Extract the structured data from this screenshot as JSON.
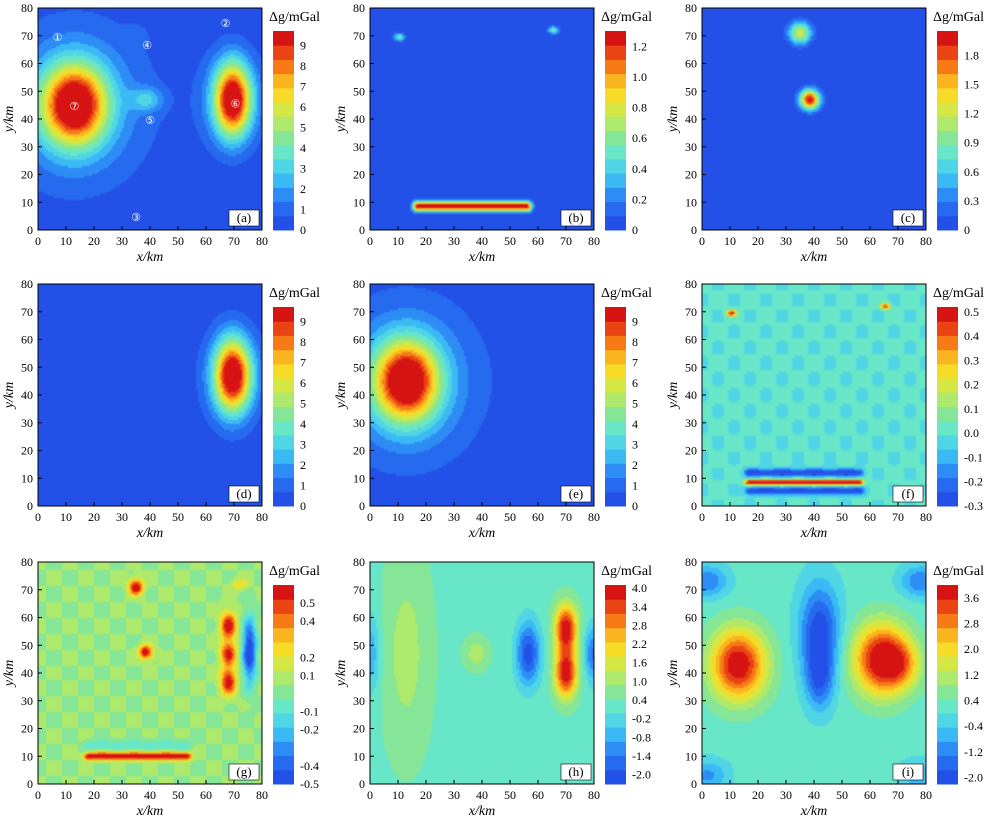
{
  "chart_data": [
    {
      "type": "heatmap",
      "panel_label": "(a)",
      "xlabel": "x/km",
      "ylabel": "y/km",
      "xlim": [
        0,
        80
      ],
      "ylim": [
        0,
        80
      ],
      "x_ticks": [
        "0",
        "10",
        "20",
        "30",
        "40",
        "50",
        "60",
        "70",
        "80"
      ],
      "y_ticks": [
        "0",
        "10",
        "20",
        "30",
        "40",
        "50",
        "60",
        "70",
        "80"
      ],
      "colorbar_title": "Δg/mGal",
      "vmin": 0,
      "vmax": 9.7,
      "colorbar_ticks": [
        "0",
        "1",
        "2",
        "3",
        "4",
        "5",
        "6",
        "7",
        "8",
        "9"
      ],
      "background": 0,
      "sources": [
        {
          "x": 13,
          "y": 45,
          "amp": 9.7,
          "sx": 8,
          "sy": 10
        },
        {
          "x": 13,
          "y": 45,
          "amp": 2.2,
          "sx": 20,
          "sy": 22
        },
        {
          "x": 69.5,
          "y": 47,
          "amp": 9.6,
          "sx": 4.5,
          "sy": 9
        },
        {
          "x": 69.5,
          "y": 47,
          "amp": 1.6,
          "sx": 9,
          "sy": 14
        },
        {
          "x": 39,
          "y": 47,
          "amp": 2.2,
          "sx": 4,
          "sy": 3
        },
        {
          "x": 35,
          "y": 70,
          "amp": 0.7,
          "sx": 3,
          "sy": 2.5
        }
      ],
      "markers": [
        {
          "text": "①",
          "x": 7,
          "y": 70
        },
        {
          "text": "②",
          "x": 67,
          "y": 75
        },
        {
          "text": "③",
          "x": 35,
          "y": 5
        },
        {
          "text": "④",
          "x": 39,
          "y": 67
        },
        {
          "text": "⑤",
          "x": 40,
          "y": 40
        },
        {
          "text": "⑥",
          "x": 70.5,
          "y": 46
        },
        {
          "text": "⑦",
          "x": 13,
          "y": 45
        }
      ]
    },
    {
      "type": "heatmap",
      "panel_label": "(b)",
      "xlabel": "x/km",
      "ylabel": "y/km",
      "xlim": [
        0,
        80
      ],
      "ylim": [
        0,
        80
      ],
      "x_ticks": [
        "0",
        "10",
        "20",
        "30",
        "40",
        "50",
        "60",
        "70",
        "80"
      ],
      "y_ticks": [
        "0",
        "10",
        "20",
        "30",
        "40",
        "50",
        "60",
        "70",
        "80"
      ],
      "colorbar_title": "Δg/mGal",
      "vmin": 0,
      "vmax": 1.3,
      "colorbar_ticks": [
        "0",
        "0.2",
        "0.4",
        "0.6",
        "0.8",
        "1.0",
        "1.2"
      ],
      "background": 0,
      "sources": [
        {
          "x": 10.5,
          "y": 69.5,
          "amp": 0.55,
          "sx": 1.4,
          "sy": 1.0
        },
        {
          "x": 65.5,
          "y": 72,
          "amp": 0.55,
          "sx": 1.4,
          "sy": 1.0
        }
      ],
      "bars": [
        {
          "x0": 17,
          "x1": 56,
          "y": 8.5,
          "amp": 1.32,
          "sy": 1.3
        }
      ]
    },
    {
      "type": "heatmap",
      "panel_label": "(c)",
      "xlabel": "x/km",
      "ylabel": "y/km",
      "xlim": [
        0,
        80
      ],
      "ylim": [
        0,
        80
      ],
      "x_ticks": [
        "0",
        "10",
        "20",
        "30",
        "40",
        "50",
        "60",
        "70",
        "80"
      ],
      "y_ticks": [
        "0",
        "10",
        "20",
        "30",
        "40",
        "50",
        "60",
        "70",
        "80"
      ],
      "colorbar_title": "Δg/mGal",
      "vmin": 0,
      "vmax": 2.05,
      "colorbar_ticks": [
        "0",
        "0.3",
        "0.6",
        "0.9",
        "1.2",
        "1.5",
        "1.8"
      ],
      "background": 0,
      "sources": [
        {
          "x": 35,
          "y": 71,
          "amp": 1.25,
          "sx": 2.8,
          "sy": 2.8
        },
        {
          "x": 38.5,
          "y": 47,
          "amp": 2.05,
          "sx": 2.5,
          "sy": 2.5
        }
      ]
    },
    {
      "type": "heatmap",
      "panel_label": "(d)",
      "xlabel": "x/km",
      "ylabel": "y/km",
      "xlim": [
        0,
        80
      ],
      "ylim": [
        0,
        80
      ],
      "x_ticks": [
        "0",
        "10",
        "20",
        "30",
        "40",
        "50",
        "60",
        "70",
        "80"
      ],
      "y_ticks": [
        "0",
        "10",
        "20",
        "30",
        "40",
        "50",
        "60",
        "70",
        "80"
      ],
      "colorbar_title": "Δg/mGal",
      "vmin": 0,
      "vmax": 9.7,
      "colorbar_ticks": [
        "0",
        "1",
        "2",
        "3",
        "4",
        "5",
        "6",
        "7",
        "8",
        "9"
      ],
      "background": 0,
      "sources": [
        {
          "x": 69.5,
          "y": 47,
          "amp": 9.6,
          "sx": 4.5,
          "sy": 9
        },
        {
          "x": 69.5,
          "y": 47,
          "amp": 1.6,
          "sx": 9,
          "sy": 14
        }
      ]
    },
    {
      "type": "heatmap",
      "panel_label": "(e)",
      "xlabel": "x/km",
      "ylabel": "y/km",
      "xlim": [
        0,
        80
      ],
      "ylim": [
        0,
        80
      ],
      "x_ticks": [
        "0",
        "10",
        "20",
        "30",
        "40",
        "50",
        "60",
        "70",
        "80"
      ],
      "y_ticks": [
        "0",
        "10",
        "20",
        "30",
        "40",
        "50",
        "60",
        "70",
        "80"
      ],
      "colorbar_title": "Δg/mGal",
      "vmin": 0,
      "vmax": 9.7,
      "colorbar_ticks": [
        "0",
        "1",
        "2",
        "3",
        "4",
        "5",
        "6",
        "7",
        "8",
        "9"
      ],
      "background": 0,
      "sources": [
        {
          "x": 13,
          "y": 45,
          "amp": 9.7,
          "sx": 8,
          "sy": 10
        },
        {
          "x": 13,
          "y": 45,
          "amp": 2.2,
          "sx": 20,
          "sy": 22
        }
      ]
    },
    {
      "type": "heatmap",
      "panel_label": "(f)",
      "xlabel": "x/km",
      "ylabel": "y/km",
      "xlim": [
        0,
        80
      ],
      "ylim": [
        0,
        80
      ],
      "x_ticks": [
        "0",
        "10",
        "20",
        "30",
        "40",
        "50",
        "60",
        "70",
        "80"
      ],
      "y_ticks": [
        "0",
        "10",
        "20",
        "30",
        "40",
        "50",
        "60",
        "70",
        "80"
      ],
      "colorbar_title": "Δg/mGal",
      "vmin": -0.3,
      "vmax": 0.52,
      "colorbar_ticks": [
        "-0.3",
        "-0.2",
        "-0.1",
        "0.0",
        "0.1",
        "0.2",
        "0.3",
        "0.4",
        "0.5"
      ],
      "background": 0,
      "ripple": 0.03,
      "sources": [
        {
          "x": 10.5,
          "y": 69.5,
          "amp": 0.5,
          "sx": 1.2,
          "sy": 0.8
        },
        {
          "x": 65.5,
          "y": 72,
          "amp": 0.45,
          "sx": 1.2,
          "sy": 0.8
        }
      ],
      "bars": [
        {
          "x0": 17,
          "x1": 56,
          "y": 8.5,
          "amp": 0.55,
          "sy": 0.7
        },
        {
          "x0": 17,
          "x1": 56,
          "y": 12,
          "amp": -0.3,
          "sy": 1.0
        },
        {
          "x0": 17,
          "x1": 56,
          "y": 5.5,
          "amp": -0.3,
          "sy": 1.0
        }
      ]
    },
    {
      "type": "heatmap",
      "panel_label": "(g)",
      "xlabel": "x/km",
      "ylabel": "y/km",
      "xlim": [
        0,
        80
      ],
      "ylim": [
        0,
        80
      ],
      "x_ticks": [
        "0",
        "10",
        "20",
        "30",
        "40",
        "50",
        "60",
        "70",
        "80"
      ],
      "y_ticks": [
        "0",
        "10",
        "20",
        "30",
        "40",
        "50",
        "60",
        "70",
        "80"
      ],
      "colorbar_title": "Δg/mGal",
      "vmin": -0.5,
      "vmax": 0.6,
      "colorbar_ticks": [
        "-0.5",
        "-0.4",
        "-0.2",
        "-0.1",
        "0.1",
        "0.2",
        "0.4",
        "0.5"
      ],
      "background": 0.05,
      "ripple": 0.04,
      "sources": [
        {
          "x": 35,
          "y": 71,
          "amp": 0.6,
          "sx": 1.8,
          "sy": 2.0
        },
        {
          "x": 38.5,
          "y": 47.5,
          "amp": 0.6,
          "sx": 1.7,
          "sy": 1.7
        },
        {
          "x": 68,
          "y": 57,
          "amp": 0.55,
          "sx": 2.0,
          "sy": 3.5
        },
        {
          "x": 68,
          "y": 47,
          "amp": 0.5,
          "sx": 2.0,
          "sy": 3.0
        },
        {
          "x": 68,
          "y": 37,
          "amp": 0.55,
          "sx": 2.0,
          "sy": 3.5
        },
        {
          "x": 75.5,
          "y": 48,
          "amp": -0.58,
          "sx": 1.7,
          "sy": 8.0
        },
        {
          "x": 72,
          "y": 72,
          "amp": 0.2,
          "sx": 2.0,
          "sy": 1.5
        }
      ],
      "bars": [
        {
          "x0": 18,
          "x1": 53,
          "y": 10,
          "amp": 0.6,
          "sy": 1.0
        },
        {
          "x0": 18,
          "x1": 53,
          "y": 14,
          "amp": -0.12,
          "sy": 1.5
        }
      ]
    },
    {
      "type": "heatmap",
      "panel_label": "(h)",
      "xlabel": "x/km",
      "ylabel": "y/km",
      "xlim": [
        0,
        80
      ],
      "ylim": [
        0,
        80
      ],
      "x_ticks": [
        "0",
        "10",
        "20",
        "30",
        "40",
        "50",
        "60",
        "70",
        "80"
      ],
      "y_ticks": [
        "0",
        "10",
        "20",
        "30",
        "40",
        "50",
        "60",
        "70",
        "80"
      ],
      "colorbar_title": "Δg/mGal",
      "vmin": -2.3,
      "vmax": 4.1,
      "colorbar_ticks": [
        "-2.0",
        "-1.4",
        "-0.8",
        "-0.2",
        "0.4",
        "1.0",
        "1.6",
        "2.2",
        "2.8",
        "3.4",
        "4.0"
      ],
      "background": 0.3,
      "sources": [
        {
          "x": 70,
          "y": 56,
          "amp": 3.9,
          "sx": 2.8,
          "sy": 6
        },
        {
          "x": 70,
          "y": 40,
          "amp": 3.9,
          "sx": 2.8,
          "sy": 6
        },
        {
          "x": 56.5,
          "y": 47,
          "amp": -2.4,
          "sx": 3.0,
          "sy": 8
        },
        {
          "x": 80,
          "y": 47,
          "amp": -1.8,
          "sx": 2.5,
          "sy": 7
        },
        {
          "x": 0,
          "y": 47,
          "amp": -1.2,
          "sx": 2.5,
          "sy": 10
        },
        {
          "x": 13,
          "y": 47,
          "amp": 0.8,
          "sx": 6,
          "sy": 25
        },
        {
          "x": 38,
          "y": 47,
          "amp": 0.9,
          "sx": 3,
          "sy": 4
        }
      ]
    },
    {
      "type": "heatmap",
      "panel_label": "(i)",
      "xlabel": "x/km",
      "ylabel": "y/km",
      "xlim": [
        0,
        80
      ],
      "ylim": [
        0,
        80
      ],
      "x_ticks": [
        "0",
        "10",
        "20",
        "30",
        "40",
        "50",
        "60",
        "70",
        "80"
      ],
      "y_ticks": [
        "0",
        "10",
        "20",
        "30",
        "40",
        "50",
        "60",
        "70",
        "80"
      ],
      "colorbar_title": "Δg/mGal",
      "vmin": -2.2,
      "vmax": 4.0,
      "colorbar_ticks": [
        "-2.0",
        "-1.2",
        "-0.4",
        "0.4",
        "1.2",
        "2.0",
        "2.8",
        "3.6"
      ],
      "background": 0.2,
      "sources": [
        {
          "x": 13,
          "y": 43,
          "amp": 3.9,
          "sx": 7,
          "sy": 9
        },
        {
          "x": 64,
          "y": 45,
          "amp": 3.9,
          "sx": 7,
          "sy": 9
        },
        {
          "x": 71,
          "y": 43,
          "amp": 1.5,
          "sx": 5,
          "sy": 6
        },
        {
          "x": 42,
          "y": 55,
          "amp": -2.3,
          "sx": 5,
          "sy": 12
        },
        {
          "x": 42,
          "y": 38,
          "amp": -1.6,
          "sx": 3.5,
          "sy": 8
        },
        {
          "x": 2,
          "y": 73,
          "amp": -1.5,
          "sx": 5,
          "sy": 4
        },
        {
          "x": 78,
          "y": 73,
          "amp": -1.5,
          "sx": 5,
          "sy": 4
        },
        {
          "x": 2,
          "y": 3,
          "amp": -1.2,
          "sx": 5,
          "sy": 4
        },
        {
          "x": 78,
          "y": 3,
          "amp": -1.0,
          "sx": 5,
          "sy": 4
        }
      ]
    }
  ]
}
